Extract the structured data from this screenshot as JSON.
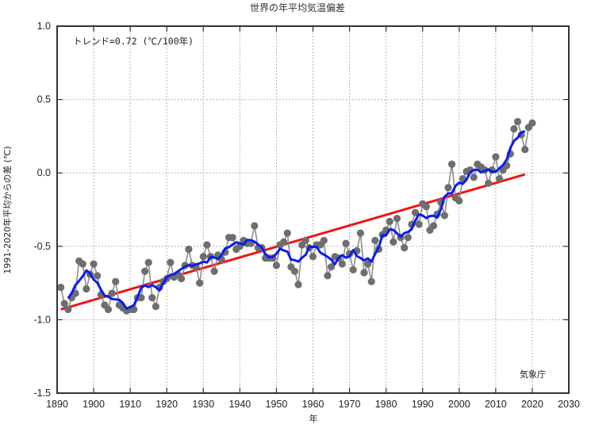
{
  "chart_data": {
    "type": "line",
    "title": "世界の年平均気温偏差",
    "xlabel": "年",
    "ylabel": "1991-2020年平均からの差 (℃)",
    "xlim": [
      1890,
      2030
    ],
    "ylim": [
      -1.5,
      1.0
    ],
    "grid": true,
    "x_ticks": [
      "1890",
      "1900",
      "1910",
      "1920",
      "1930",
      "1940",
      "1950",
      "1960",
      "1970",
      "1980",
      "1990",
      "2000",
      "2010",
      "2020",
      "2030"
    ],
    "y_ticks": [
      "1.0",
      "0.5",
      "0.0",
      "-0.5",
      "-1.0",
      "-1.5"
    ],
    "annotation": "トレンド=0.72 (℃/100年)",
    "source_label": "気象庁",
    "trend_per_century": 0.72,
    "colors": {
      "annual": "#6e6e6e",
      "smoothed": "#0a1cf0",
      "trend": "#f01414"
    },
    "series": [
      {
        "name": "annual",
        "x": [
          1891,
          1892,
          1893,
          1894,
          1895,
          1896,
          1897,
          1898,
          1899,
          1900,
          1901,
          1902,
          1903,
          1904,
          1905,
          1906,
          1907,
          1908,
          1909,
          1910,
          1911,
          1912,
          1913,
          1914,
          1915,
          1916,
          1917,
          1918,
          1919,
          1920,
          1921,
          1922,
          1923,
          1924,
          1925,
          1926,
          1927,
          1928,
          1929,
          1930,
          1931,
          1932,
          1933,
          1934,
          1935,
          1936,
          1937,
          1938,
          1939,
          1940,
          1941,
          1942,
          1943,
          1944,
          1945,
          1946,
          1947,
          1948,
          1949,
          1950,
          1951,
          1952,
          1953,
          1954,
          1955,
          1956,
          1957,
          1958,
          1959,
          1960,
          1961,
          1962,
          1963,
          1964,
          1965,
          1966,
          1967,
          1968,
          1969,
          1970,
          1971,
          1972,
          1973,
          1974,
          1975,
          1976,
          1977,
          1978,
          1979,
          1980,
          1981,
          1982,
          1983,
          1984,
          1985,
          1986,
          1987,
          1988,
          1989,
          1990,
          1991,
          1992,
          1993,
          1994,
          1995,
          1996,
          1997,
          1998,
          1999,
          2000,
          2001,
          2002,
          2003,
          2004,
          2005,
          2006,
          2007,
          2008,
          2009,
          2010,
          2011,
          2012,
          2013,
          2014,
          2015,
          2016,
          2017,
          2018,
          2019,
          2020
        ],
        "values": [
          -0.78,
          -0.89,
          -0.93,
          -0.85,
          -0.82,
          -0.6,
          -0.62,
          -0.79,
          -0.69,
          -0.62,
          -0.7,
          -0.83,
          -0.9,
          -0.93,
          -0.82,
          -0.74,
          -0.9,
          -0.92,
          -0.94,
          -0.93,
          -0.93,
          -0.85,
          -0.85,
          -0.67,
          -0.61,
          -0.85,
          -0.91,
          -0.78,
          -0.74,
          -0.72,
          -0.61,
          -0.71,
          -0.69,
          -0.72,
          -0.63,
          -0.52,
          -0.63,
          -0.64,
          -0.75,
          -0.57,
          -0.49,
          -0.57,
          -0.67,
          -0.56,
          -0.59,
          -0.54,
          -0.44,
          -0.44,
          -0.52,
          -0.5,
          -0.46,
          -0.48,
          -0.48,
          -0.36,
          -0.51,
          -0.51,
          -0.58,
          -0.58,
          -0.58,
          -0.63,
          -0.49,
          -0.47,
          -0.41,
          -0.64,
          -0.67,
          -0.76,
          -0.49,
          -0.46,
          -0.51,
          -0.57,
          -0.49,
          -0.49,
          -0.46,
          -0.7,
          -0.64,
          -0.57,
          -0.58,
          -0.62,
          -0.48,
          -0.55,
          -0.66,
          -0.53,
          -0.41,
          -0.68,
          -0.62,
          -0.74,
          -0.46,
          -0.52,
          -0.42,
          -0.39,
          -0.33,
          -0.47,
          -0.31,
          -0.44,
          -0.51,
          -0.44,
          -0.35,
          -0.27,
          -0.35,
          -0.21,
          -0.23,
          -0.39,
          -0.36,
          -0.28,
          -0.2,
          -0.29,
          -0.1,
          0.06,
          -0.17,
          -0.19,
          -0.04,
          0.01,
          0.02,
          -0.03,
          0.06,
          0.04,
          0.02,
          -0.07,
          0.02,
          0.11,
          -0.04,
          0.02,
          0.05,
          0.13,
          0.3,
          0.35,
          0.26,
          0.16,
          0.31,
          0.34
        ]
      },
      {
        "name": "5-year running mean",
        "window": 5
      },
      {
        "name": "long-term trend",
        "x": [
          1891,
          2018
        ],
        "values": [
          -0.93,
          -0.01
        ]
      }
    ]
  }
}
